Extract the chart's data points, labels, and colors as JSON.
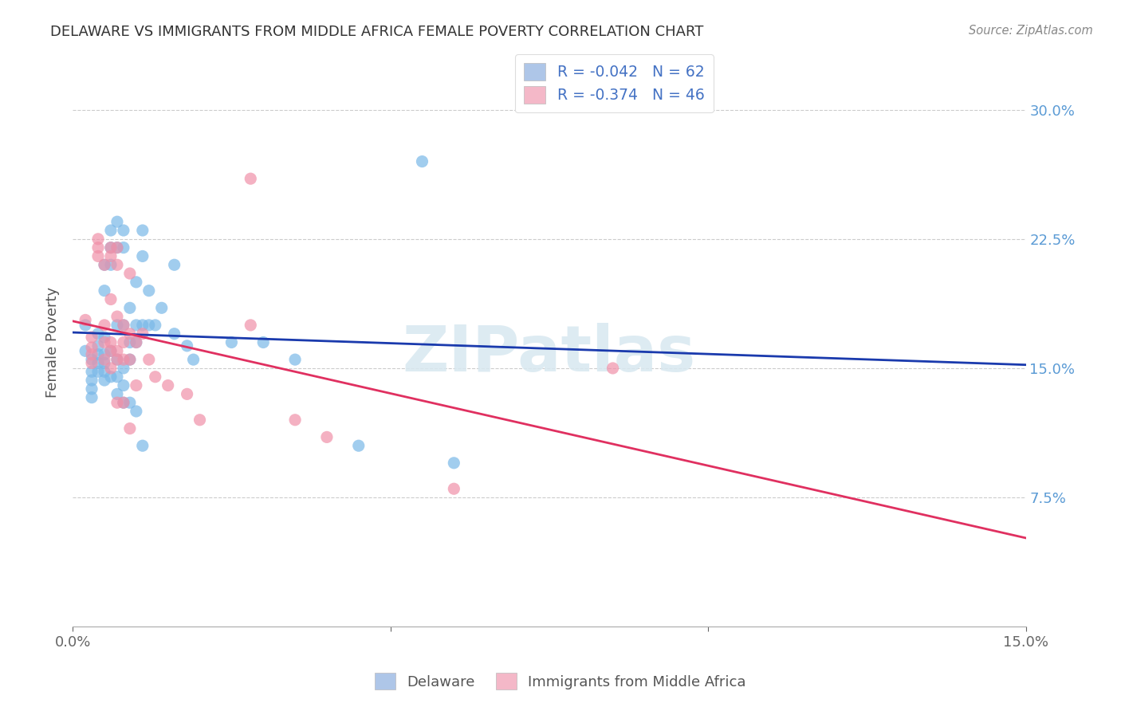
{
  "title": "DELAWARE VS IMMIGRANTS FROM MIDDLE AFRICA FEMALE POVERTY CORRELATION CHART",
  "source": "Source: ZipAtlas.com",
  "ylabel": "Female Poverty",
  "yticks": [
    "7.5%",
    "15.0%",
    "22.5%",
    "30.0%"
  ],
  "ytick_vals": [
    0.075,
    0.15,
    0.225,
    0.3
  ],
  "xlim": [
    0.0,
    0.15
  ],
  "ylim": [
    0.0,
    0.33
  ],
  "legend_entries": [
    {
      "label": "R = -0.042   N = 62",
      "color": "#aec6e8"
    },
    {
      "label": "R = -0.374   N = 46",
      "color": "#f4b8c8"
    }
  ],
  "legend_labels": [
    "Delaware",
    "Immigrants from Middle Africa"
  ],
  "blue_color": "#7ab8e8",
  "pink_color": "#f090a8",
  "trendline_blue": "#1a3aad",
  "trendline_pink": "#e03060",
  "watermark": "ZIPatlas",
  "blue_scatter": [
    [
      0.002,
      0.175
    ],
    [
      0.002,
      0.16
    ],
    [
      0.003,
      0.155
    ],
    [
      0.003,
      0.148
    ],
    [
      0.003,
      0.143
    ],
    [
      0.003,
      0.138
    ],
    [
      0.003,
      0.133
    ],
    [
      0.004,
      0.17
    ],
    [
      0.004,
      0.163
    ],
    [
      0.004,
      0.158
    ],
    [
      0.004,
      0.153
    ],
    [
      0.004,
      0.148
    ],
    [
      0.005,
      0.143
    ],
    [
      0.005,
      0.21
    ],
    [
      0.005,
      0.195
    ],
    [
      0.005,
      0.168
    ],
    [
      0.005,
      0.158
    ],
    [
      0.005,
      0.153
    ],
    [
      0.005,
      0.148
    ],
    [
      0.006,
      0.23
    ],
    [
      0.006,
      0.22
    ],
    [
      0.006,
      0.21
    ],
    [
      0.006,
      0.16
    ],
    [
      0.006,
      0.145
    ],
    [
      0.007,
      0.235
    ],
    [
      0.007,
      0.22
    ],
    [
      0.007,
      0.175
    ],
    [
      0.007,
      0.155
    ],
    [
      0.007,
      0.145
    ],
    [
      0.007,
      0.135
    ],
    [
      0.008,
      0.23
    ],
    [
      0.008,
      0.22
    ],
    [
      0.008,
      0.175
    ],
    [
      0.008,
      0.15
    ],
    [
      0.008,
      0.14
    ],
    [
      0.008,
      0.13
    ],
    [
      0.009,
      0.185
    ],
    [
      0.009,
      0.165
    ],
    [
      0.009,
      0.155
    ],
    [
      0.009,
      0.13
    ],
    [
      0.01,
      0.2
    ],
    [
      0.01,
      0.175
    ],
    [
      0.01,
      0.165
    ],
    [
      0.01,
      0.125
    ],
    [
      0.011,
      0.23
    ],
    [
      0.011,
      0.215
    ],
    [
      0.011,
      0.175
    ],
    [
      0.011,
      0.105
    ],
    [
      0.012,
      0.195
    ],
    [
      0.012,
      0.175
    ],
    [
      0.013,
      0.175
    ],
    [
      0.014,
      0.185
    ],
    [
      0.016,
      0.21
    ],
    [
      0.016,
      0.17
    ],
    [
      0.018,
      0.163
    ],
    [
      0.019,
      0.155
    ],
    [
      0.025,
      0.165
    ],
    [
      0.035,
      0.155
    ],
    [
      0.055,
      0.27
    ],
    [
      0.03,
      0.165
    ],
    [
      0.045,
      0.105
    ],
    [
      0.06,
      0.095
    ]
  ],
  "pink_scatter": [
    [
      0.002,
      0.178
    ],
    [
      0.003,
      0.168
    ],
    [
      0.003,
      0.162
    ],
    [
      0.003,
      0.158
    ],
    [
      0.003,
      0.153
    ],
    [
      0.004,
      0.225
    ],
    [
      0.004,
      0.22
    ],
    [
      0.004,
      0.215
    ],
    [
      0.005,
      0.21
    ],
    [
      0.005,
      0.175
    ],
    [
      0.005,
      0.165
    ],
    [
      0.005,
      0.155
    ],
    [
      0.006,
      0.22
    ],
    [
      0.006,
      0.215
    ],
    [
      0.006,
      0.19
    ],
    [
      0.006,
      0.165
    ],
    [
      0.006,
      0.16
    ],
    [
      0.006,
      0.15
    ],
    [
      0.007,
      0.22
    ],
    [
      0.007,
      0.21
    ],
    [
      0.007,
      0.18
    ],
    [
      0.007,
      0.16
    ],
    [
      0.007,
      0.155
    ],
    [
      0.007,
      0.13
    ],
    [
      0.008,
      0.175
    ],
    [
      0.008,
      0.165
    ],
    [
      0.008,
      0.155
    ],
    [
      0.008,
      0.13
    ],
    [
      0.009,
      0.205
    ],
    [
      0.009,
      0.17
    ],
    [
      0.009,
      0.155
    ],
    [
      0.009,
      0.115
    ],
    [
      0.01,
      0.165
    ],
    [
      0.01,
      0.14
    ],
    [
      0.011,
      0.17
    ],
    [
      0.012,
      0.155
    ],
    [
      0.013,
      0.145
    ],
    [
      0.015,
      0.14
    ],
    [
      0.018,
      0.135
    ],
    [
      0.02,
      0.12
    ],
    [
      0.028,
      0.26
    ],
    [
      0.028,
      0.175
    ],
    [
      0.035,
      0.12
    ],
    [
      0.04,
      0.11
    ],
    [
      0.06,
      0.08
    ],
    [
      0.085,
      0.15
    ]
  ],
  "trendline_blue_params": [
    0.1585,
    -0.042
  ],
  "trendline_pink_params": [
    0.175,
    -0.374
  ]
}
